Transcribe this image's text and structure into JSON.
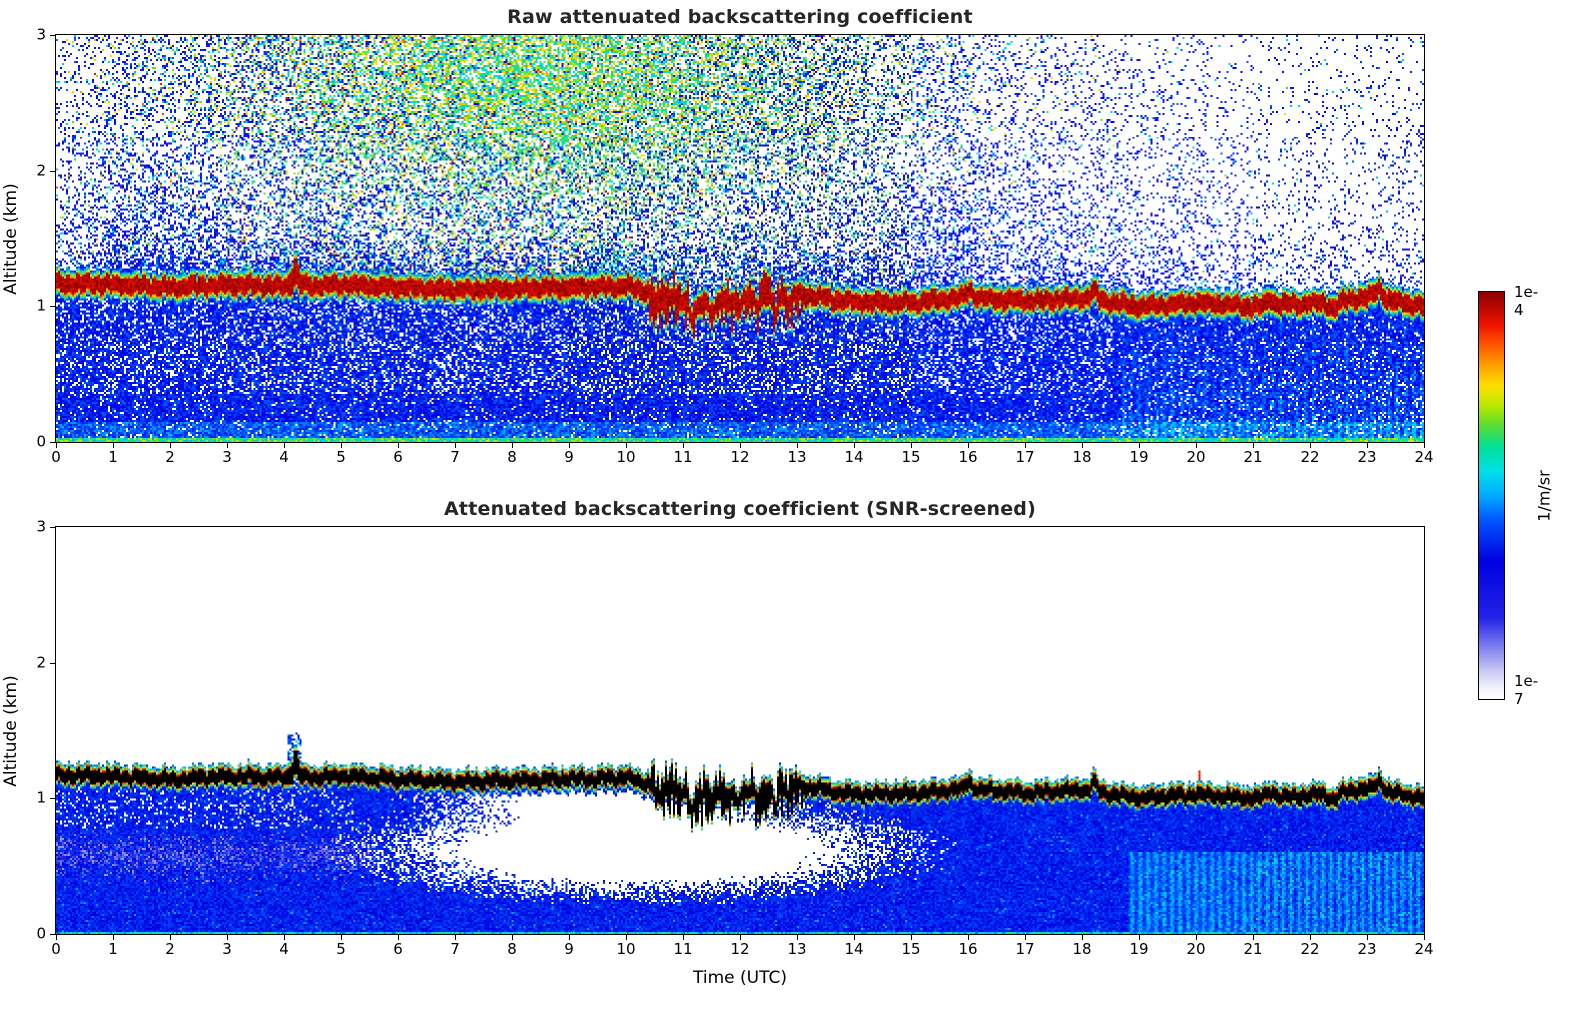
{
  "figure": {
    "background": "#ffffff",
    "panels": [
      {
        "id": "raw",
        "title": "Raw attenuated backscattering coefficient",
        "ylabel": "Altitude (km)"
      },
      {
        "id": "screened",
        "title": "Attenuated backscattering coefficient (SNR-screened)",
        "ylabel": "Altitude (km)",
        "xlabel": "Time (UTC)"
      }
    ],
    "colorbar": {
      "top_label": "1e-4",
      "bottom_label": "1e-7",
      "unit_label": "1/m/sr"
    }
  },
  "chart_data": {
    "type": "heatmap",
    "panels": [
      {
        "title": "Raw attenuated backscattering coefficient"
      },
      {
        "title": "Attenuated backscattering coefficient (SNR-screened)"
      }
    ],
    "xlabel": "Time (UTC)",
    "ylabel": "Altitude (km)",
    "x_range_hours": [
      0,
      24
    ],
    "y_range_km": [
      0,
      3
    ],
    "x_ticks": [
      0,
      1,
      2,
      3,
      4,
      5,
      6,
      7,
      8,
      9,
      10,
      11,
      12,
      13,
      14,
      15,
      16,
      17,
      18,
      19,
      20,
      21,
      22,
      23,
      24
    ],
    "y_ticks": [
      0,
      1,
      2,
      3
    ],
    "color_scale": {
      "units": "1/m/sr",
      "scale": "log",
      "min": 1e-07,
      "max": 0.0001,
      "stops": [
        {
          "t": 0.0,
          "c": "#ffffff"
        },
        {
          "t": 0.03,
          "c": "#f0f0fb"
        },
        {
          "t": 0.07,
          "c": "#c8c8f4"
        },
        {
          "t": 0.12,
          "c": "#8888ee"
        },
        {
          "t": 0.2,
          "c": "#2222e8"
        },
        {
          "t": 0.34,
          "c": "#0000e0"
        },
        {
          "t": 0.44,
          "c": "#0055ff"
        },
        {
          "t": 0.5,
          "c": "#00aaff"
        },
        {
          "t": 0.56,
          "c": "#00e0e8"
        },
        {
          "t": 0.62,
          "c": "#00e09a"
        },
        {
          "t": 0.67,
          "c": "#55dd33"
        },
        {
          "t": 0.72,
          "c": "#b8e800"
        },
        {
          "t": 0.77,
          "c": "#ffe000"
        },
        {
          "t": 0.82,
          "c": "#ffa000"
        },
        {
          "t": 0.87,
          "c": "#ff5500"
        },
        {
          "t": 0.92,
          "c": "#ee1100"
        },
        {
          "t": 1.0,
          "c": "#8b0000"
        }
      ]
    },
    "layer": {
      "description": "Strong saturated aerosol/cloud backscatter layer (~1e-4 1/m/sr, saturated black in the SNR-screened panel) present over the whole day near 1.0-1.2 km, becoming jagged between 10.5 and 13 UTC and slowly descending to ~1.0 km by 24 UTC",
      "hours": [
        0,
        1,
        2,
        3,
        4,
        5,
        6,
        7,
        8,
        9,
        10,
        11,
        12,
        13,
        14,
        15,
        16,
        17,
        18,
        19,
        20,
        21,
        22,
        23,
        24
      ],
      "altitude_km": [
        1.17,
        1.16,
        1.14,
        1.16,
        1.15,
        1.16,
        1.14,
        1.12,
        1.13,
        1.14,
        1.15,
        1.03,
        1.05,
        1.09,
        1.03,
        1.03,
        1.07,
        1.04,
        1.06,
        1.0,
        1.03,
        1.0,
        1.02,
        1.07,
        1.0
      ],
      "disturbances": [
        {
          "t": 4.18,
          "dz": 0.1,
          "w": 0.05
        },
        {
          "t": 10.55,
          "dz": -0.1,
          "w": 0.04
        },
        {
          "t": 10.8,
          "dz": 0.05,
          "w": 0.04
        },
        {
          "t": 11.15,
          "dz": -0.12,
          "w": 0.05
        },
        {
          "t": 11.5,
          "dz": -0.15,
          "w": 0.04
        },
        {
          "t": 11.95,
          "dz": -0.08,
          "w": 0.05
        },
        {
          "t": 12.3,
          "dz": -0.05,
          "w": 0.04
        },
        {
          "t": 12.6,
          "dz": -0.13,
          "w": 0.04
        },
        {
          "t": 12.85,
          "dz": -0.09,
          "w": 0.03
        },
        {
          "t": 16.0,
          "dz": 0.05,
          "w": 0.06
        },
        {
          "t": 18.2,
          "dz": 0.06,
          "w": 0.06
        },
        {
          "t": 21.3,
          "dz": 0.05,
          "w": 0.06
        },
        {
          "t": 22.4,
          "dz": -0.05,
          "w": 0.08
        },
        {
          "t": 23.2,
          "dz": 0.07,
          "w": 0.07
        }
      ]
    },
    "features": {
      "daytime_noise_region": {
        "description": "Elevated solar background noise (green/yellow speckle) in the raw panel above ~1.5 km, roughly 4-14 UTC, strongest near the top of the plot",
        "t_center": 8.5,
        "t_sigma": 4.2,
        "z_center": 2.75,
        "z_sigma": 0.95
      },
      "attenuation_hole": {
        "description": "SNR-screened (white) region below the layer, roughly 5-15.5 UTC between 0.35 and 1.0 km, with speckled edges",
        "t_center": 10.2,
        "t_sigma": 3.4,
        "z_center": 0.62,
        "z_sigma": 0.25
      },
      "notes": [
        "Raw panel: blue speckle noise everywhere above the layer, density decreasing with altitude and fading after ~15 UTC",
        "Raw panel: dense blue signal below the layer down to the surface, with cyan vertical streaks after ~19 UTC",
        "Screened panel: everything above the layer is white (removed), except a thin blue speckled fringe on top of the layer and a small red spike near 20 UTC",
        "Screened panel: pale/whitish horizontal band near 0.5-0.7 km before ~5.5 UTC",
        "Disturbance/plume at ~4.2 UTC reaching ~1.4 km in both panels",
        "Thin green/cyan line along the surface (z ~ 0) in both panels"
      ]
    }
  }
}
